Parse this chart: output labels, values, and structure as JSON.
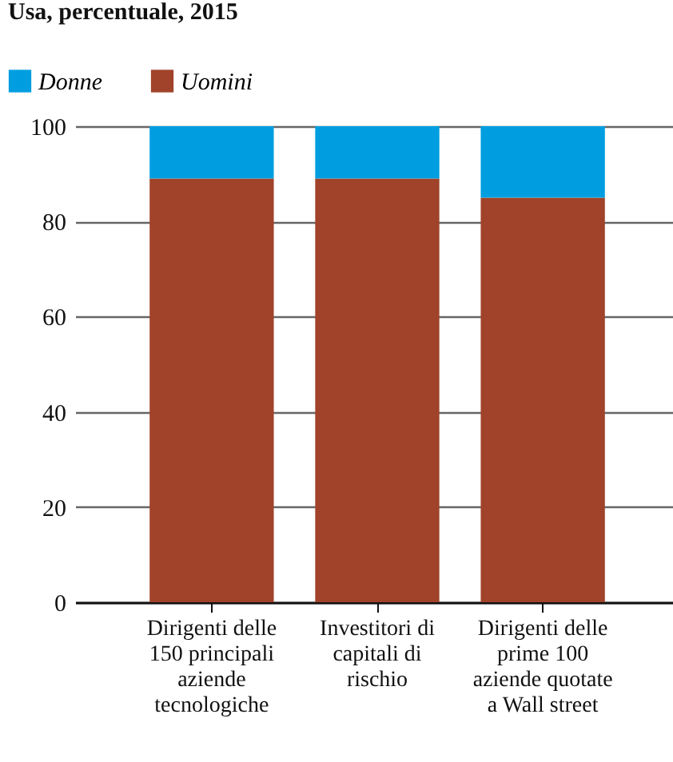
{
  "chart_data": {
    "type": "bar",
    "subtitle": "Usa, percentuale, 2015",
    "categories": [
      "Dirigenti delle 150 principali aziende tecnologiche",
      "Investitori di capitali di rischio",
      "Dirigenti delle prime 100 aziende quotate a Wall street"
    ],
    "stacked": true,
    "series": [
      {
        "name": "Uomini",
        "color": "#a0432a",
        "values": [
          89,
          89,
          85
        ]
      },
      {
        "name": "Donne",
        "color": "#009ee0",
        "values": [
          11,
          11,
          15
        ]
      }
    ],
    "ylim": [
      0,
      100
    ],
    "yticks": [
      0,
      20,
      40,
      60,
      80,
      100
    ],
    "grid": "y",
    "legend": "top left"
  }
}
